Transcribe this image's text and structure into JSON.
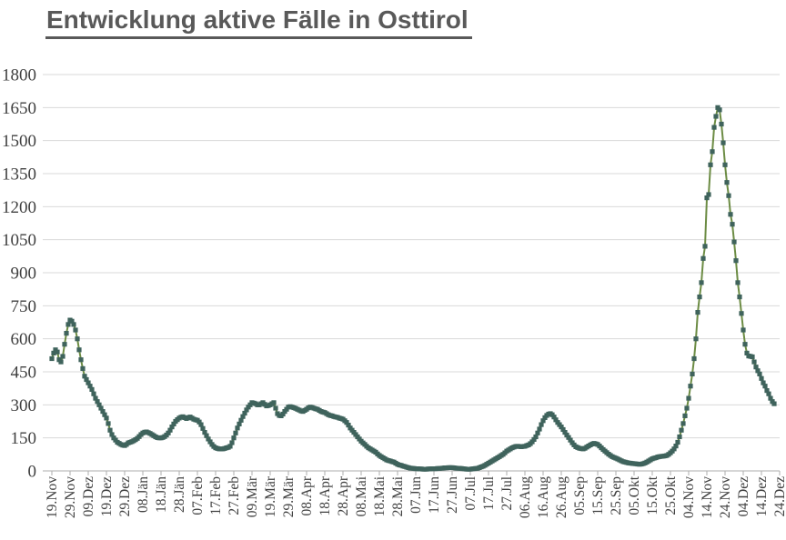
{
  "title": "Entwicklung aktive Fälle in Osttirol",
  "chart_data": {
    "type": "line",
    "title": "Entwicklung aktive Fälle in Osttirol",
    "xlabel": "",
    "ylabel": "",
    "ylim": [
      0,
      1800
    ],
    "y_ticks": [
      0,
      150,
      300,
      450,
      600,
      750,
      900,
      1050,
      1200,
      1350,
      1500,
      1650,
      1800
    ],
    "x_tick_labels": [
      "19.Nov",
      "29.Nov",
      "09.Dez",
      "19.Dez",
      "29.Dez",
      "08.Jän",
      "18.Jän",
      "28.Jän",
      "07.Feb",
      "17.Feb",
      "27.Feb",
      "09.Mär",
      "19.Mär",
      "29.Mär",
      "08.Apr",
      "18.Apr",
      "28.Apr",
      "08.Mai",
      "18.Mai",
      "28.Mai",
      "07.Jun",
      "17.Jun",
      "27.Jun",
      "07.Jul",
      "17.Jul",
      "27.Jul",
      "06.Aug",
      "16.Aug",
      "26.Aug",
      "05.Sep",
      "15.Sep",
      "25.Sep",
      "05.Okt",
      "15.Okt",
      "25.Okt",
      "04.Nov",
      "14.Nov",
      "24.Nov",
      "04.Dez",
      "14.Dez",
      "24.Dez"
    ],
    "x_tick_interval_days": 10,
    "series_name": "aktive Fälle",
    "sampling": "daily",
    "marker": "square",
    "grid": "horizontal",
    "legend": "none",
    "values": [
      510,
      535,
      550,
      540,
      505,
      495,
      520,
      575,
      625,
      665,
      685,
      680,
      665,
      640,
      600,
      550,
      505,
      465,
      430,
      415,
      400,
      385,
      370,
      350,
      330,
      315,
      300,
      285,
      270,
      255,
      240,
      215,
      185,
      165,
      150,
      140,
      130,
      125,
      120,
      117,
      115,
      120,
      127,
      130,
      133,
      137,
      142,
      148,
      156,
      165,
      172,
      176,
      177,
      174,
      170,
      165,
      160,
      155,
      151,
      150,
      150,
      152,
      156,
      163,
      172,
      185,
      200,
      213,
      225,
      233,
      240,
      244,
      246,
      242,
      238,
      242,
      245,
      240,
      235,
      232,
      230,
      222,
      210,
      193,
      175,
      160,
      145,
      132,
      120,
      111,
      105,
      102,
      100,
      100,
      100,
      102,
      105,
      107,
      112,
      128,
      150,
      172,
      195,
      213,
      230,
      247,
      262,
      277,
      290,
      300,
      310,
      308,
      305,
      300,
      300,
      305,
      310,
      302,
      295,
      297,
      300,
      305,
      310,
      285,
      260,
      252,
      250,
      258,
      270,
      280,
      290,
      292,
      290,
      287,
      284,
      280,
      276,
      272,
      270,
      275,
      280,
      286,
      290,
      288,
      285,
      282,
      280,
      275,
      270,
      267,
      265,
      260,
      255,
      252,
      250,
      247,
      245,
      243,
      240,
      238,
      235,
      228,
      220,
      208,
      195,
      185,
      175,
      165,
      155,
      145,
      135,
      127,
      120,
      112,
      105,
      100,
      95,
      90,
      85,
      77,
      70,
      65,
      60,
      55,
      50,
      47,
      45,
      42,
      40,
      35,
      30,
      27,
      25,
      22,
      20,
      17,
      15,
      13,
      12,
      11,
      10,
      10,
      9,
      9,
      8,
      8,
      8,
      9,
      9,
      10,
      10,
      10,
      11,
      11,
      12,
      13,
      14,
      14,
      15,
      15,
      15,
      14,
      13,
      12,
      12,
      11,
      10,
      9,
      8,
      8,
      8,
      9,
      10,
      11,
      12,
      15,
      18,
      21,
      25,
      30,
      35,
      40,
      45,
      50,
      55,
      60,
      65,
      70,
      75,
      82,
      90,
      95,
      100,
      105,
      108,
      111,
      112,
      111,
      110,
      111,
      112,
      115,
      118,
      124,
      132,
      143,
      155,
      172,
      190,
      210,
      228,
      242,
      252,
      258,
      260,
      255,
      245,
      232,
      220,
      210,
      200,
      188,
      175,
      163,
      152,
      140,
      128,
      118,
      110,
      106,
      103,
      101,
      100,
      103,
      108,
      113,
      118,
      122,
      125,
      123,
      120,
      113,
      105,
      97,
      90,
      83,
      76,
      70,
      65,
      61,
      58,
      54,
      50,
      46,
      42,
      40,
      38,
      36,
      35,
      34,
      33,
      32,
      31,
      30,
      31,
      33,
      36,
      40,
      45,
      50,
      55,
      58,
      60,
      63,
      65,
      66,
      67,
      68,
      70,
      75,
      82,
      90,
      100,
      113,
      130,
      155,
      185,
      215,
      250,
      285,
      330,
      385,
      440,
      510,
      600,
      720,
      790,
      855,
      965,
      1020,
      1240,
      1255,
      1390,
      1450,
      1560,
      1610,
      1650,
      1640,
      1575,
      1490,
      1390,
      1310,
      1250,
      1165,
      1120,
      1040,
      955,
      855,
      790,
      715,
      640,
      575,
      535,
      522,
      520,
      518,
      495,
      472,
      455,
      440,
      420,
      400,
      385,
      365,
      350,
      330,
      315,
      305
    ],
    "colors": {
      "line": "#6C8C44",
      "marker": "#3F635C",
      "grid": "#D9D9D9",
      "axis": "#ADADAD",
      "tick_label": "#404040",
      "title": "#595959"
    }
  }
}
